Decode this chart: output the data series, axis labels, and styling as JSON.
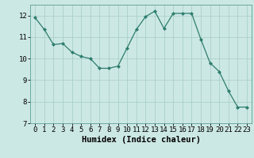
{
  "x": [
    0,
    1,
    2,
    3,
    4,
    5,
    6,
    7,
    8,
    9,
    10,
    11,
    12,
    13,
    14,
    15,
    16,
    17,
    18,
    19,
    20,
    21,
    22,
    23
  ],
  "y": [
    11.9,
    11.35,
    10.65,
    10.7,
    10.3,
    10.1,
    10.0,
    9.55,
    9.55,
    9.65,
    10.5,
    11.35,
    11.95,
    12.2,
    11.4,
    12.1,
    12.1,
    12.1,
    10.9,
    9.8,
    9.4,
    8.5,
    7.75,
    7.75
  ],
  "xlabel": "Humidex (Indice chaleur)",
  "xlim": [
    -0.5,
    23.5
  ],
  "ylim": [
    7,
    12.5
  ],
  "yticks": [
    7,
    8,
    9,
    10,
    11,
    12
  ],
  "xticks": [
    0,
    1,
    2,
    3,
    4,
    5,
    6,
    7,
    8,
    9,
    10,
    11,
    12,
    13,
    14,
    15,
    16,
    17,
    18,
    19,
    20,
    21,
    22,
    23
  ],
  "line_color": "#2e7d6e",
  "marker": "D",
  "marker_size": 2.0,
  "bg_color": "#cce8e4",
  "grid_color": "#aacfca",
  "tick_fontsize": 6.5,
  "label_fontsize": 7.5
}
